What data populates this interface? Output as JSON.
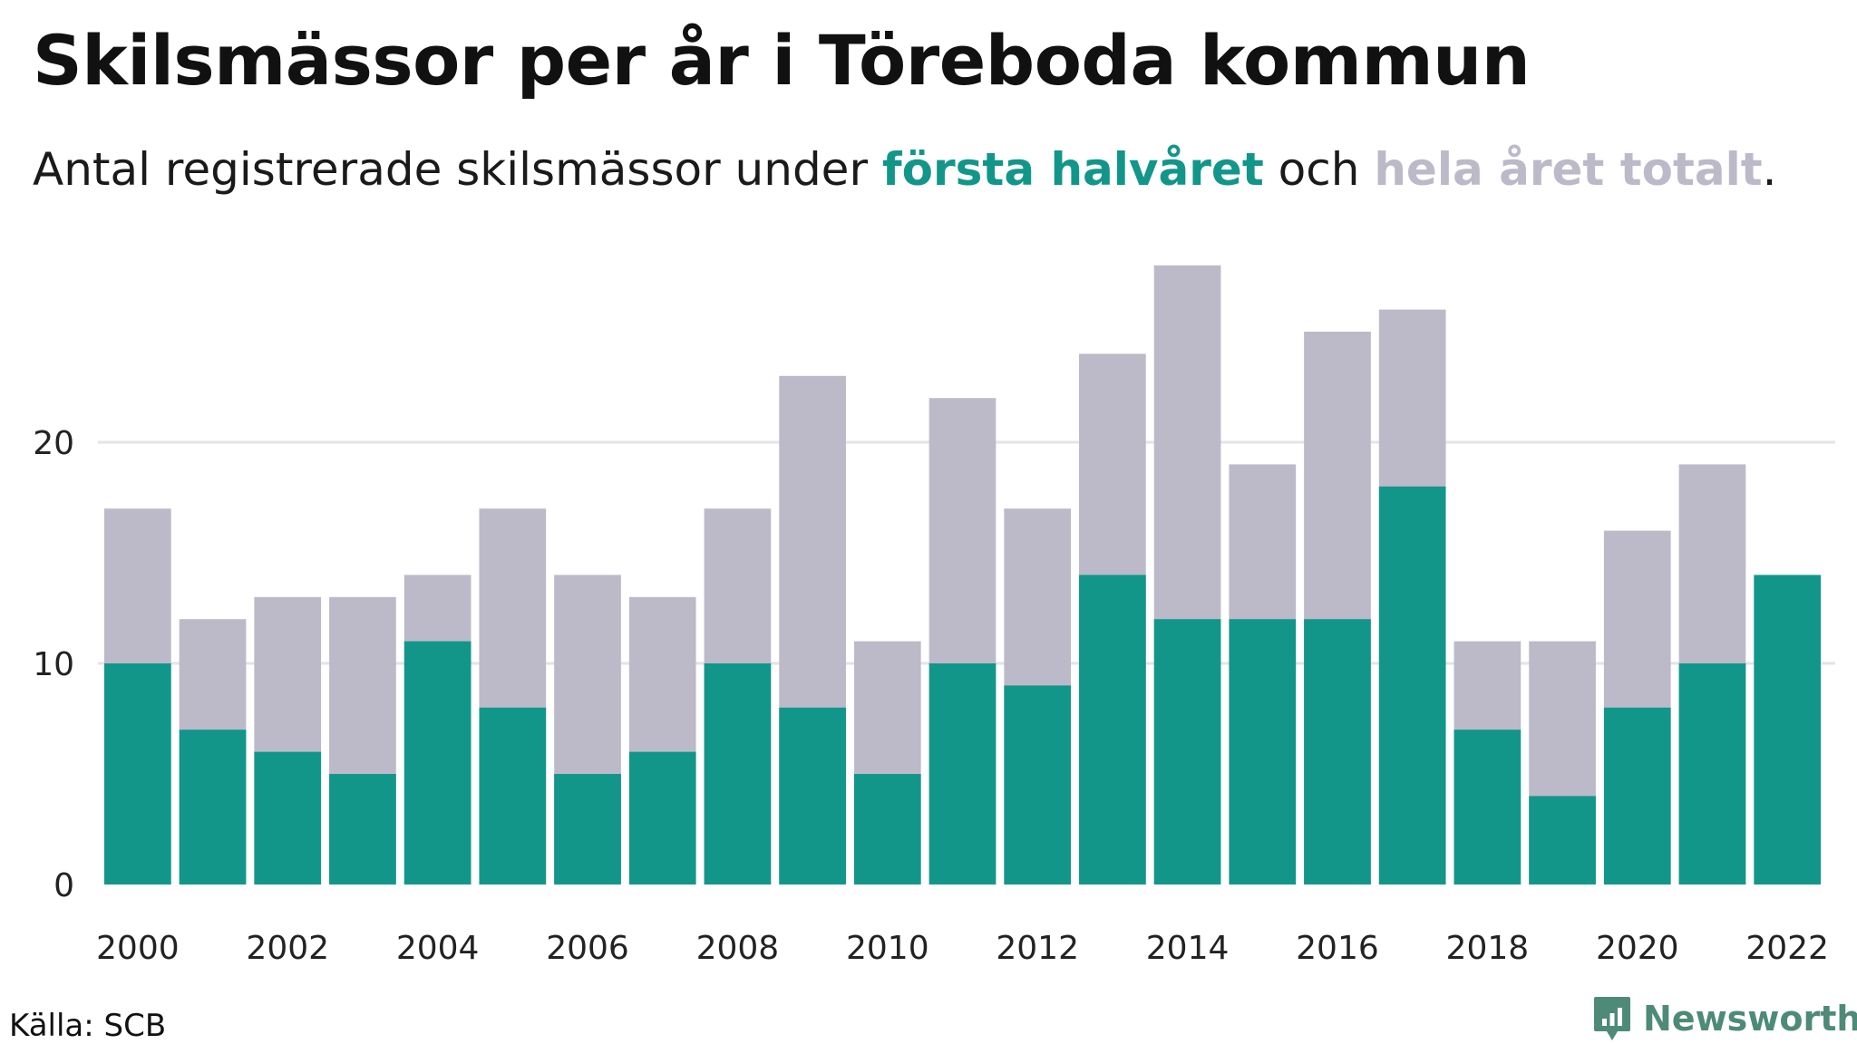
{
  "title": "Skilsmässor per år i Töreboda kommun",
  "subtitle": {
    "prefix": "Antal registrerade skilsmässor under ",
    "highlight_first": "första halvåret",
    "middle": " och ",
    "highlight_total": "hela året totalt",
    "suffix": "."
  },
  "colors": {
    "first_half": "#13968a",
    "total": "#bcbac8",
    "grid": "#e3e3e8",
    "brand": "#4e8a78"
  },
  "chart_data": {
    "type": "bar",
    "categories": [
      "2000",
      "2001",
      "2002",
      "2003",
      "2004",
      "2005",
      "2006",
      "2007",
      "2008",
      "2009",
      "2010",
      "2011",
      "2012",
      "2013",
      "2014",
      "2015",
      "2016",
      "2017",
      "2018",
      "2019",
      "2020",
      "2021",
      "2022"
    ],
    "series": [
      {
        "name": "hela året totalt",
        "values": [
          17,
          12,
          13,
          13,
          14,
          17,
          14,
          13,
          17,
          23,
          11,
          22,
          17,
          24,
          28,
          19,
          25,
          26,
          11,
          11,
          16,
          19,
          null
        ]
      },
      {
        "name": "första halvåret",
        "values": [
          10,
          7,
          6,
          5,
          11,
          8,
          5,
          6,
          10,
          8,
          5,
          10,
          9,
          14,
          12,
          12,
          12,
          18,
          7,
          4,
          8,
          10,
          14
        ]
      }
    ],
    "x_tick_labels": [
      "2000",
      "2002",
      "2004",
      "2006",
      "2008",
      "2010",
      "2012",
      "2014",
      "2016",
      "2018",
      "2020",
      "2022"
    ],
    "y_ticks": [
      0,
      10,
      20
    ],
    "ylim": [
      0,
      28
    ],
    "grid": true
  },
  "source": "Källa: SCB",
  "brand": {
    "name": "Newsworthy",
    "icon": "newsworthy-logo-icon"
  }
}
